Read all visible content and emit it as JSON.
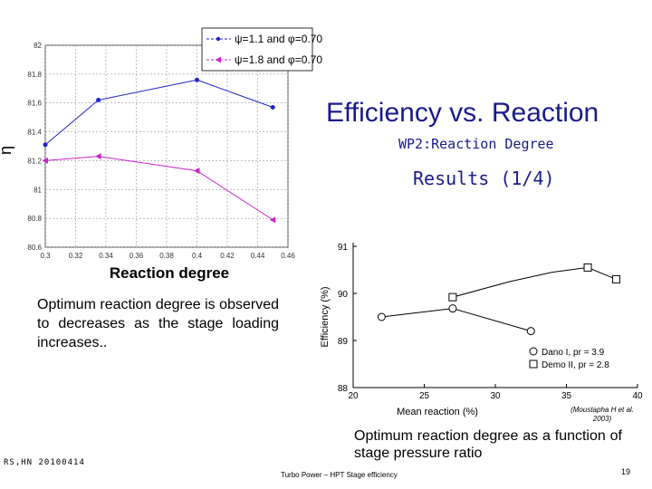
{
  "slide": {
    "title": "Efficiency vs. Reaction",
    "subtitle": "WP2:Reaction Degree",
    "results": "Results (1/4)",
    "observation": "Optimum reaction degree is observed to decreases as the stage loading increases..",
    "caption": "Optimum reaction degree as a function of stage pressure ratio",
    "author": "RS,HN 20100414",
    "footer": "Turbo Power – HPT Stage efficiency",
    "page_number": "19",
    "citation": "(Moustapha H et al. 2003)"
  },
  "chart_data": [
    {
      "type": "line",
      "ylabel": "η",
      "xlabel": "Reaction degree",
      "xlim": [
        0.3,
        0.46
      ],
      "ylim": [
        80.6,
        82.0
      ],
      "x_ticks": [
        "0.3",
        "0.32",
        "0.34",
        "0.36",
        "0.38",
        "0.4",
        "0.42",
        "0.44",
        "0.46"
      ],
      "y_ticks": [
        "80.6",
        "80.8",
        "81",
        "81.2",
        "81.4",
        "81.6",
        "81.8",
        "82"
      ],
      "y_tick_labels": [
        "80.6",
        "80.8",
        "81",
        "81.2",
        "81.4",
        "81.6",
        "81.8",
        "82"
      ],
      "grid": true,
      "legend_position": "top-right",
      "series": [
        {
          "name": "ψ=1.1 and φ=0.70",
          "color": "#2222cc",
          "marker": "dot",
          "x": [
            0.3,
            0.335,
            0.4,
            0.45
          ],
          "y": [
            81.31,
            81.62,
            81.76,
            81.57
          ]
        },
        {
          "name": "ψ=1.8 and φ=0.70",
          "color": "#cc22cc",
          "marker": "triangle-left",
          "x": [
            0.3,
            0.335,
            0.4,
            0.45
          ],
          "y": [
            81.2,
            81.23,
            81.13,
            80.79
          ]
        }
      ]
    },
    {
      "type": "line",
      "ylabel": "Efficiency (%)",
      "xlabel": "Mean reaction (%)",
      "xlim": [
        20,
        40
      ],
      "ylim": [
        88,
        91
      ],
      "x_ticks": [
        "20",
        "25",
        "30",
        "35",
        "40"
      ],
      "y_ticks": [
        "88",
        "89",
        "90",
        "91"
      ],
      "grid": false,
      "legend_position": "bottom-right",
      "series": [
        {
          "name": "Dano I, pr = 3.9",
          "color": "#000000",
          "marker": "circle",
          "x": [
            22,
            27,
            32.5
          ],
          "y": [
            89.5,
            89.68,
            89.2
          ]
        },
        {
          "name": "Demo II, pr = 2.8",
          "color": "#000000",
          "marker": "square",
          "x": [
            27,
            31,
            34,
            36.5,
            38.5
          ],
          "y": [
            89.92,
            90.25,
            90.45,
            90.55,
            90.3
          ]
        }
      ]
    }
  ]
}
